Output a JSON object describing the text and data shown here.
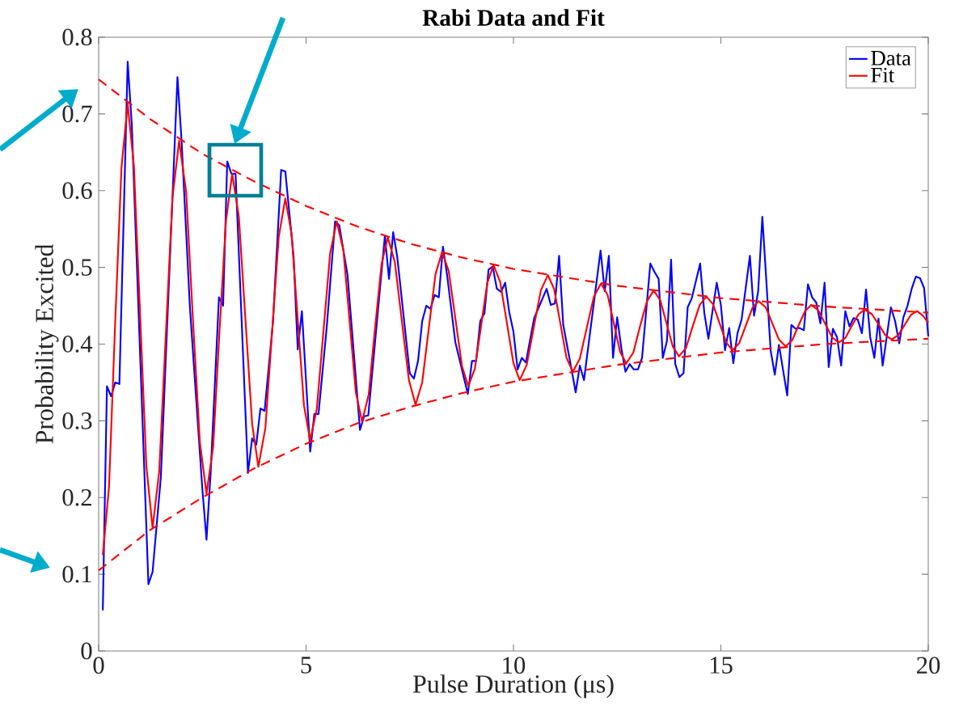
{
  "chart_data": {
    "type": "line",
    "title": "Rabi Data and Fit",
    "xlabel": "Pulse Duration (μs)",
    "ylabel": "Probability Excited",
    "xlim": [
      0,
      20
    ],
    "ylim": [
      0,
      0.8
    ],
    "xticks": [
      0,
      5,
      10,
      15,
      20
    ],
    "yticks": [
      0,
      0.1,
      0.2,
      0.3,
      0.4,
      0.5,
      0.6,
      0.7,
      0.8
    ],
    "grid": false,
    "legend": "top right",
    "marker": "none",
    "series": [
      {
        "name": "Data",
        "color": "#0000ff",
        "line_style": "solid",
        "x": [
          0.1,
          0.2,
          0.3,
          0.4,
          0.5,
          0.7,
          0.8,
          1.2,
          1.3,
          1.5,
          1.9,
          2.0,
          2.2,
          2.5,
          2.6,
          2.7,
          2.9,
          3.0,
          3.1,
          3.2,
          3.3,
          3.6,
          3.7,
          3.8,
          3.9,
          4.0,
          4.2,
          4.4,
          4.5,
          4.7,
          4.8,
          4.9,
          5.1,
          5.2,
          5.3,
          5.5,
          5.7,
          5.8,
          6.0,
          6.3,
          6.4,
          6.5,
          6.9,
          7.0,
          7.1,
          7.2,
          7.5,
          7.6,
          7.7,
          7.8,
          7.9,
          8.0,
          8.1,
          8.2,
          8.3,
          8.4,
          8.6,
          8.9,
          9.0,
          9.1,
          9.2,
          9.3,
          9.4,
          9.5,
          9.6,
          9.7,
          9.8,
          9.9,
          10.0,
          10.1,
          10.2,
          10.3,
          10.5,
          10.8,
          10.9,
          11.0,
          11.1,
          11.2,
          11.4,
          11.5,
          11.6,
          11.7,
          12.1,
          12.2,
          12.3,
          12.4,
          12.5,
          12.6,
          12.7,
          12.8,
          12.9,
          13.0,
          13.1,
          13.3,
          13.4,
          13.5,
          13.6,
          13.7,
          13.8,
          13.9,
          14.0,
          14.1,
          14.2,
          14.3,
          14.5,
          14.6,
          14.7,
          14.9,
          15.0,
          15.1,
          15.2,
          15.3,
          15.4,
          15.5,
          15.7,
          15.8,
          15.9,
          16.0,
          16.2,
          16.3,
          16.4,
          16.6,
          16.7,
          16.8,
          16.9,
          17.0,
          17.1,
          17.2,
          17.3,
          17.4,
          17.5,
          17.6,
          17.7,
          17.8,
          17.9,
          18.0,
          18.1,
          18.2,
          18.3,
          18.4,
          18.5,
          18.6,
          18.7,
          18.8,
          18.9,
          19.1,
          19.2,
          19.3,
          19.4,
          19.5,
          19.6,
          19.7,
          19.8,
          19.9,
          20.0
        ],
        "values": [
          0.053,
          0.345,
          0.332,
          0.35,
          0.348,
          0.768,
          0.685,
          0.087,
          0.103,
          0.227,
          0.748,
          0.664,
          0.448,
          0.211,
          0.145,
          0.232,
          0.461,
          0.45,
          0.638,
          0.622,
          0.622,
          0.232,
          0.277,
          0.269,
          0.316,
          0.313,
          0.427,
          0.627,
          0.625,
          0.514,
          0.393,
          0.443,
          0.26,
          0.309,
          0.309,
          0.423,
          0.56,
          0.555,
          0.49,
          0.288,
          0.306,
          0.307,
          0.541,
          0.485,
          0.546,
          0.513,
          0.362,
          0.355,
          0.378,
          0.43,
          0.45,
          0.446,
          0.464,
          0.461,
          0.527,
          0.49,
          0.402,
          0.335,
          0.378,
          0.378,
          0.43,
          0.44,
          0.497,
          0.501,
          0.472,
          0.468,
          0.48,
          0.441,
          0.416,
          0.367,
          0.382,
          0.376,
          0.434,
          0.472,
          0.451,
          0.453,
          0.515,
          0.425,
          0.367,
          0.337,
          0.372,
          0.353,
          0.522,
          0.469,
          0.515,
          0.382,
          0.435,
          0.395,
          0.364,
          0.374,
          0.367,
          0.367,
          0.382,
          0.505,
          0.494,
          0.485,
          0.382,
          0.404,
          0.51,
          0.374,
          0.357,
          0.362,
          0.448,
          0.46,
          0.505,
          0.441,
          0.407,
          0.48,
          0.451,
          0.392,
          0.421,
          0.375,
          0.414,
          0.432,
          0.515,
          0.437,
          0.469,
          0.566,
          0.392,
          0.36,
          0.399,
          0.333,
          0.425,
          0.42,
          0.421,
          0.418,
          0.478,
          0.461,
          0.454,
          0.427,
          0.48,
          0.37,
          0.42,
          0.409,
          0.372,
          0.443,
          0.423,
          0.434,
          0.432,
          0.414,
          0.471,
          0.409,
          0.382,
          0.433,
          0.372,
          0.448,
          0.43,
          0.401,
          0.435,
          0.45,
          0.472,
          0.488,
          0.486,
          0.473,
          0.41
        ]
      },
      {
        "name": "Fit",
        "color": "#ff0000",
        "line_style": "solid",
        "x": [
          0.1,
          0.25,
          0.4,
          0.55,
          0.7,
          0.85,
          1.0,
          1.15,
          1.3,
          1.46,
          1.62,
          1.78,
          1.94,
          2.11,
          2.27,
          2.44,
          2.6,
          2.76,
          2.91,
          3.07,
          3.22,
          3.38,
          3.54,
          3.7,
          3.85,
          4.02,
          4.18,
          4.34,
          4.5,
          4.65,
          4.8,
          4.95,
          5.1,
          5.26,
          5.42,
          5.58,
          5.74,
          5.9,
          6.05,
          6.2,
          6.35,
          6.51,
          6.66,
          6.82,
          6.97,
          7.14,
          7.31,
          7.48,
          7.64,
          7.8,
          7.96,
          8.12,
          8.28,
          8.44,
          8.6,
          8.76,
          8.91,
          9.07,
          9.22,
          9.37,
          9.52,
          9.68,
          9.84,
          10.0,
          10.15,
          10.32,
          10.49,
          10.66,
          10.83,
          10.98,
          11.13,
          11.28,
          11.43,
          11.6,
          11.77,
          11.94,
          12.11,
          12.27,
          12.42,
          12.57,
          12.72,
          12.89,
          13.05,
          13.22,
          13.38,
          13.54,
          13.69,
          13.84,
          13.99,
          14.16,
          14.32,
          14.49,
          14.65,
          14.81,
          14.97,
          15.13,
          15.28,
          15.44,
          15.6,
          15.76,
          15.91,
          16.08,
          16.24,
          16.4,
          16.56,
          16.72,
          16.87,
          17.03,
          17.18,
          17.35,
          17.51,
          17.68,
          17.84,
          18.0,
          18.16,
          18.32,
          18.47,
          18.64,
          18.8,
          18.96,
          19.12,
          19.28,
          19.43,
          19.58,
          19.73,
          19.87,
          20.0
        ],
        "values": [
          0.125,
          0.214,
          0.43,
          0.63,
          0.713,
          0.632,
          0.437,
          0.241,
          0.16,
          0.234,
          0.413,
          0.591,
          0.665,
          0.598,
          0.435,
          0.272,
          0.205,
          0.266,
          0.414,
          0.561,
          0.622,
          0.566,
          0.431,
          0.296,
          0.24,
          0.291,
          0.415,
          0.539,
          0.59,
          0.544,
          0.432,
          0.32,
          0.274,
          0.316,
          0.417,
          0.518,
          0.56,
          0.522,
          0.43,
          0.337,
          0.299,
          0.334,
          0.419,
          0.504,
          0.539,
          0.507,
          0.43,
          0.353,
          0.321,
          0.35,
          0.421,
          0.491,
          0.52,
          0.495,
          0.433,
          0.371,
          0.345,
          0.368,
          0.424,
          0.48,
          0.503,
          0.481,
          0.428,
          0.375,
          0.353,
          0.373,
          0.422,
          0.47,
          0.49,
          0.472,
          0.427,
          0.382,
          0.364,
          0.381,
          0.422,
          0.462,
          0.479,
          0.464,
          0.427,
          0.39,
          0.375,
          0.389,
          0.423,
          0.456,
          0.47,
          0.457,
          0.427,
          0.397,
          0.384,
          0.395,
          0.423,
          0.451,
          0.462,
          0.452,
          0.427,
          0.402,
          0.392,
          0.401,
          0.424,
          0.447,
          0.456,
          0.448,
          0.427,
          0.406,
          0.397,
          0.405,
          0.424,
          0.443,
          0.451,
          0.444,
          0.427,
          0.409,
          0.402,
          0.408,
          0.424,
          0.439,
          0.445,
          0.439,
          0.426,
          0.412,
          0.406,
          0.412,
          0.425,
          0.438,
          0.443,
          0.437,
          0.428
        ]
      },
      {
        "color": "#ff0000",
        "line_style": "dashed",
        "x": [
          0,
          1.25,
          2.5,
          3.75,
          5,
          6.25,
          7.5,
          8.75,
          10,
          12.5,
          15,
          17.5,
          20
        ],
        "values": [
          0.745,
          0.693,
          0.648,
          0.612,
          0.58,
          0.553,
          0.531,
          0.513,
          0.498,
          0.476,
          0.46,
          0.449,
          0.441
        ]
      },
      {
        "color": "#ff0000",
        "line_style": "dashed",
        "x": [
          0,
          1.25,
          2.5,
          3.75,
          5,
          6.25,
          7.5,
          8.75,
          10,
          12.5,
          15,
          17.5,
          20
        ],
        "values": [
          0.105,
          0.158,
          0.2,
          0.238,
          0.27,
          0.297,
          0.318,
          0.336,
          0.351,
          0.373,
          0.389,
          0.4,
          0.407
        ]
      }
    ]
  }
}
